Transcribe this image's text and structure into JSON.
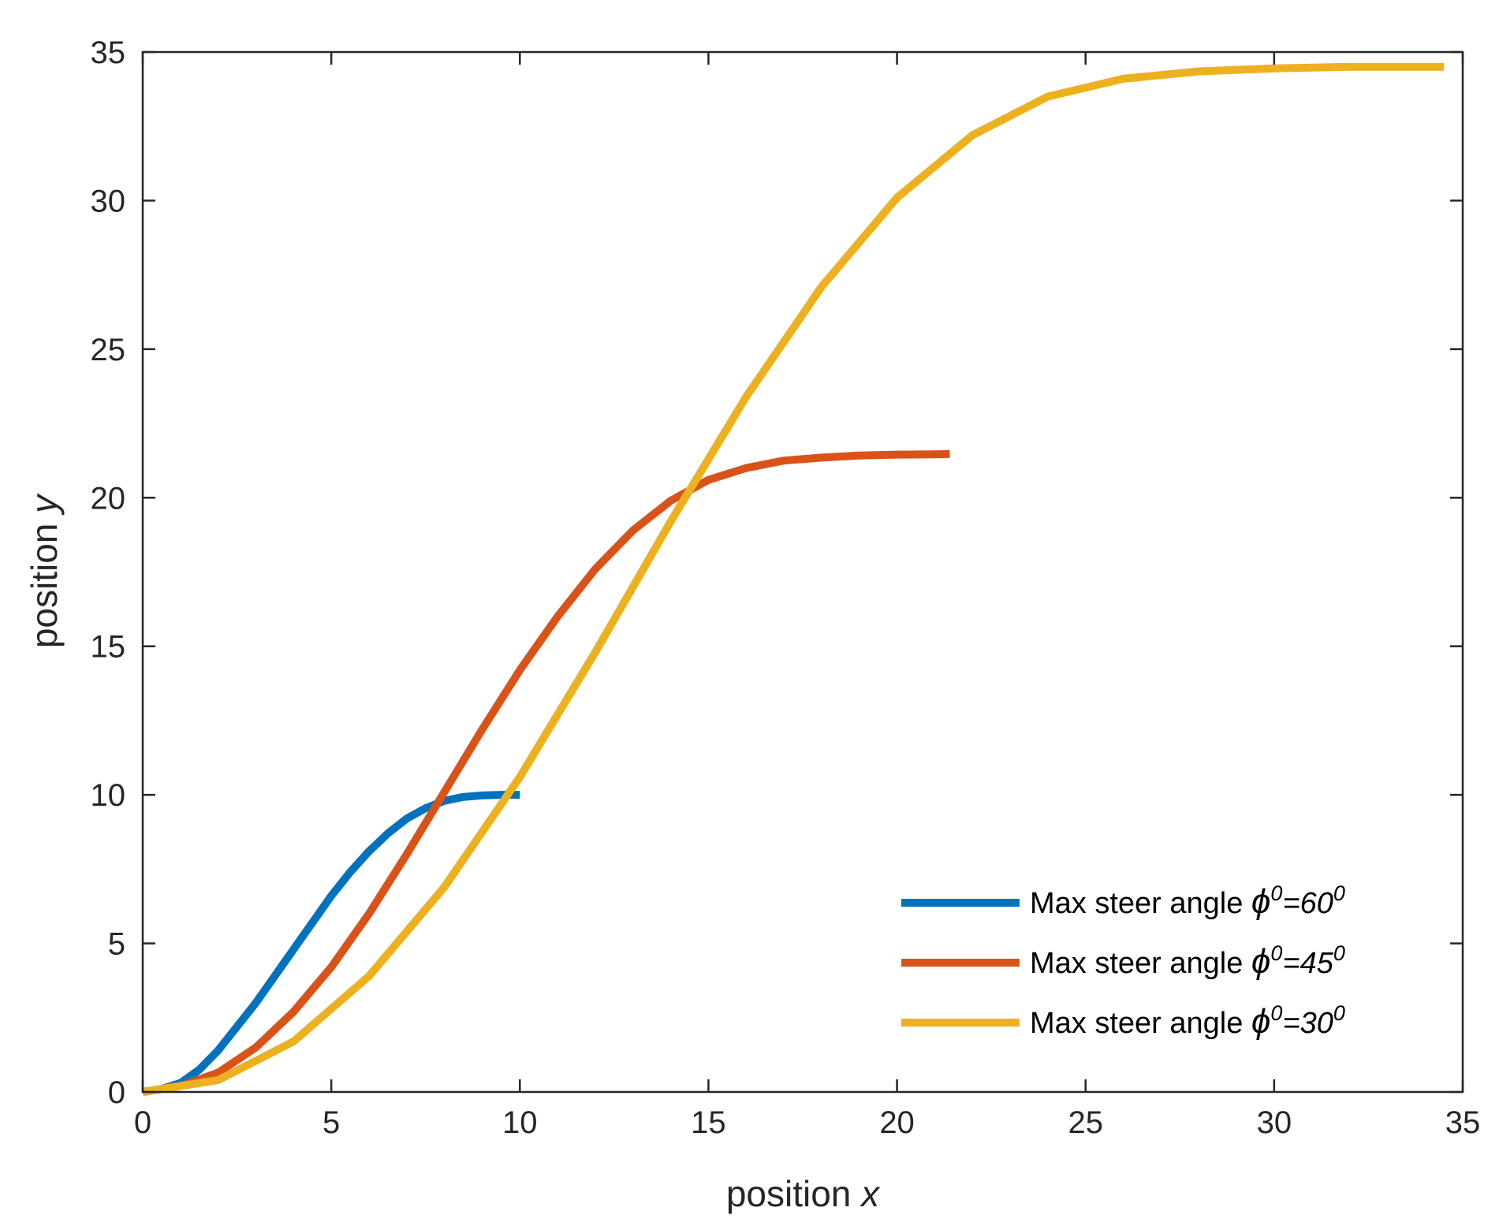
{
  "chart_data": {
    "type": "line",
    "xlabel": {
      "text": "position ",
      "var": "x"
    },
    "ylabel": {
      "text": "position ",
      "var": "y"
    },
    "xlim": [
      0,
      35
    ],
    "ylim": [
      0,
      35
    ],
    "xticks": [
      0,
      5,
      10,
      15,
      20,
      25,
      30,
      35
    ],
    "yticks": [
      0,
      5,
      10,
      15,
      20,
      25,
      30,
      35
    ],
    "grid": false,
    "legend_position": "bottom-right",
    "series": [
      {
        "prefix": "Max steer angle ",
        "symbol": "ϕ",
        "mid": "=60",
        "sup": "0",
        "color": "#0072BD",
        "x": [
          0,
          0.5,
          1,
          1.5,
          2,
          2.5,
          3,
          3.5,
          4,
          4.5,
          5,
          5.5,
          6,
          6.5,
          7,
          7.5,
          8,
          8.5,
          9,
          9.5,
          10
        ],
        "y": [
          0,
          0.1,
          0.3,
          0.75,
          1.4,
          2.2,
          3.0,
          3.9,
          4.8,
          5.7,
          6.6,
          7.4,
          8.1,
          8.7,
          9.2,
          9.55,
          9.8,
          9.93,
          9.98,
          10.0,
          10.0
        ]
      },
      {
        "prefix": "Max steer angle ",
        "symbol": "ϕ",
        "mid": "=45",
        "sup": "0",
        "color": "#D95319",
        "x": [
          0,
          1,
          2,
          3,
          4,
          5,
          6,
          7,
          8,
          9,
          10,
          11,
          12,
          13,
          14,
          15,
          16,
          17,
          18,
          19,
          20,
          21,
          21.4
        ],
        "y": [
          0,
          0.2,
          0.65,
          1.5,
          2.7,
          4.2,
          6.0,
          8.0,
          10.1,
          12.2,
          14.2,
          16.0,
          17.6,
          18.9,
          19.9,
          20.6,
          21.0,
          21.25,
          21.35,
          21.42,
          21.45,
          21.46,
          21.47
        ]
      },
      {
        "prefix": "Max steer angle ",
        "symbol": "ϕ",
        "mid": "=30",
        "sup": "0",
        "color": "#EDB120",
        "x": [
          0,
          2,
          4,
          6,
          8,
          10,
          12,
          14,
          16,
          18,
          20,
          22,
          24,
          26,
          28,
          30,
          32,
          34.5
        ],
        "y": [
          0,
          0.4,
          1.7,
          3.9,
          6.9,
          10.6,
          14.8,
          19.2,
          23.4,
          27.1,
          30.1,
          32.2,
          33.5,
          34.1,
          34.35,
          34.45,
          34.5,
          34.5
        ]
      }
    ]
  }
}
